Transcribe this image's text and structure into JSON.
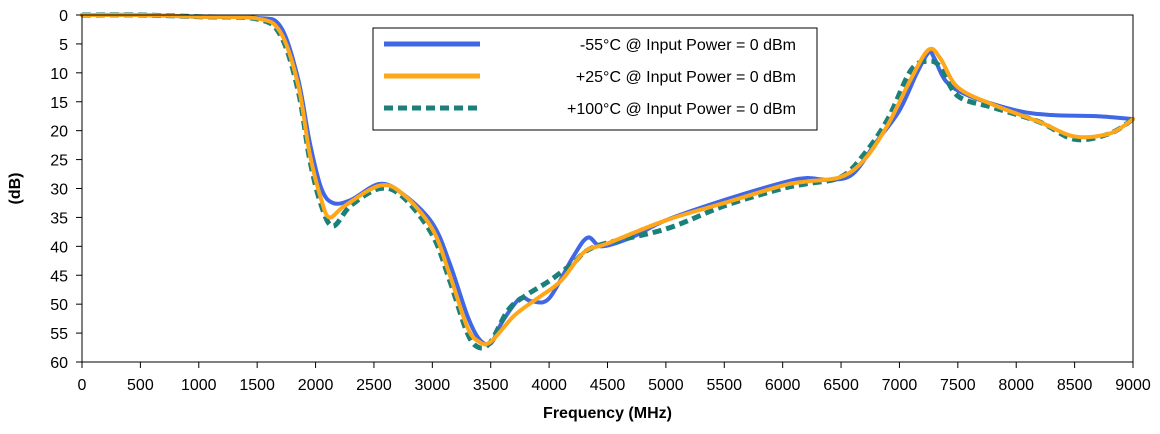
{
  "chart_data": {
    "type": "line",
    "title": "",
    "xlabel": "Frequency (MHz)",
    "ylabel": "(dB)",
    "xlim": [
      0,
      9000
    ],
    "ylim": [
      0,
      60
    ],
    "y_inverted": true,
    "x_ticks": [
      0,
      500,
      1000,
      1500,
      2000,
      2500,
      3000,
      3500,
      4000,
      4500,
      5000,
      5500,
      6000,
      6500,
      7000,
      7500,
      8000,
      8500,
      9000
    ],
    "y_ticks": [
      0,
      5,
      10,
      15,
      20,
      25,
      30,
      35,
      40,
      45,
      50,
      55,
      60
    ],
    "grid": false,
    "legend_position": "top-center",
    "series": [
      {
        "name": "-55°C @  Input Power = 0 dBm",
        "color": "#3f67e6",
        "style": "solid",
        "x": [
          0,
          500,
          1000,
          1500,
          1700,
          1850,
          1950,
          2050,
          2150,
          2300,
          2550,
          2750,
          3000,
          3150,
          3300,
          3400,
          3500,
          3600,
          3750,
          3850,
          4000,
          4200,
          4330,
          4450,
          4700,
          5000,
          5500,
          6000,
          6200,
          6400,
          6600,
          6800,
          7000,
          7150,
          7250,
          7300,
          7400,
          7600,
          8000,
          8300,
          8700,
          9000
        ],
        "y": [
          0,
          0,
          0.3,
          0.5,
          2,
          11,
          22,
          30,
          32.5,
          32,
          29.2,
          31,
          36,
          43,
          52,
          56,
          56.8,
          53,
          49,
          49.5,
          49,
          42,
          38.5,
          40,
          38.5,
          35.5,
          32,
          29,
          28.2,
          28.5,
          27.5,
          22,
          16.5,
          10,
          6.5,
          7.5,
          11.5,
          14,
          16.5,
          17.3,
          17.5,
          18
        ]
      },
      {
        "name": "+25°C @  Input Power = 0 dBm",
        "color": "#ffa719",
        "style": "solid",
        "x": [
          0,
          500,
          1000,
          1500,
          1700,
          1850,
          1950,
          2050,
          2120,
          2250,
          2550,
          2750,
          3000,
          3150,
          3300,
          3400,
          3500,
          3700,
          3900,
          4100,
          4300,
          4500,
          5000,
          5500,
          6000,
          6200,
          6500,
          6700,
          6900,
          7100,
          7250,
          7350,
          7500,
          7800,
          8200,
          8500,
          8800,
          9000
        ],
        "y": [
          0,
          0,
          0.3,
          0.6,
          3,
          12,
          24,
          32,
          35,
          33,
          29.5,
          31,
          37,
          45,
          54,
          56.5,
          56.5,
          52,
          49,
          46,
          41,
          39.5,
          35.5,
          32.5,
          29.5,
          28.8,
          28,
          25,
          19,
          11,
          6,
          7.5,
          12.5,
          15.5,
          18.5,
          21,
          20.5,
          18
        ]
      },
      {
        "name": "+100°C @  Input Power = 0 dBm",
        "color": "#1a8079",
        "style": "dashed",
        "x": [
          0,
          500,
          1000,
          1500,
          1700,
          1850,
          1950,
          2050,
          2150,
          2300,
          2550,
          2750,
          3000,
          3150,
          3300,
          3400,
          3500,
          3650,
          3800,
          4000,
          4200,
          4400,
          5000,
          5500,
          6000,
          6200,
          6500,
          6700,
          6900,
          7100,
          7250,
          7350,
          7500,
          7800,
          8200,
          8500,
          8800,
          9000
        ],
        "y": [
          0,
          0,
          0.3,
          0.7,
          3.5,
          13,
          25,
          33,
          36.5,
          33,
          30,
          31.5,
          38,
          46,
          55,
          57.5,
          56.5,
          51,
          48.5,
          46,
          43,
          40,
          37,
          33,
          30,
          29.2,
          28,
          24,
          18,
          9.5,
          8,
          9,
          14,
          16,
          18.5,
          21.5,
          20.5,
          18
        ]
      }
    ]
  }
}
